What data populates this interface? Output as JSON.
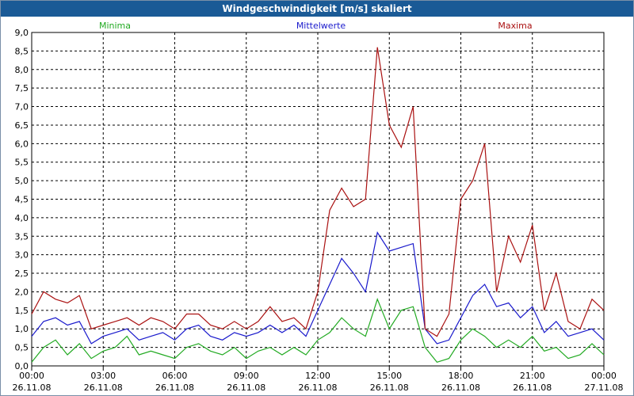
{
  "window": {
    "title": "Windgeschwindigkeit [m/s] skaliert"
  },
  "chart_data": {
    "type": "line",
    "title": "Windgeschwindigkeit [m/s] skaliert",
    "xlabel": "",
    "ylabel": "",
    "ylim": [
      0,
      9
    ],
    "y_ticks": [
      "0,0",
      "0,5",
      "1,0",
      "1,5",
      "2,0",
      "2,5",
      "3,0",
      "3,5",
      "4,0",
      "4,5",
      "5,0",
      "5,5",
      "6,0",
      "6,5",
      "7,0",
      "7,5",
      "8,0",
      "8,5",
      "9,0"
    ],
    "x_ticks": [
      {
        "time": "00:00",
        "date": "26.11.08"
      },
      {
        "time": "03:00",
        "date": "26.11.08"
      },
      {
        "time": "06:00",
        "date": "26.11.08"
      },
      {
        "time": "09:00",
        "date": "26.11.08"
      },
      {
        "time": "12:00",
        "date": "26.11.08"
      },
      {
        "time": "15:00",
        "date": "26.11.08"
      },
      {
        "time": "18:00",
        "date": "26.11.08"
      },
      {
        "time": "21:00",
        "date": "26.11.08"
      },
      {
        "time": "00:00",
        "date": "27.11.08"
      }
    ],
    "x_range_hours": [
      0,
      24
    ],
    "grid": true,
    "legend": [
      "Minima",
      "Mittelwerte",
      "Maxima"
    ],
    "x_hours": [
      0,
      0.5,
      1,
      1.5,
      2,
      2.5,
      3,
      3.5,
      4,
      4.5,
      5,
      5.5,
      6,
      6.5,
      7,
      7.5,
      8,
      8.5,
      9,
      9.5,
      10,
      10.5,
      11,
      11.5,
      12,
      12.5,
      13,
      13.5,
      14,
      14.5,
      15,
      15.5,
      16,
      16.5,
      17,
      17.5,
      18,
      18.5,
      19,
      19.5,
      20,
      20.5,
      21,
      21.5,
      22,
      22.5,
      23,
      23.5,
      24
    ],
    "series": [
      {
        "name": "Minima",
        "color": "#22aa22",
        "values": [
          0.1,
          0.5,
          0.7,
          0.3,
          0.6,
          0.2,
          0.4,
          0.5,
          0.8,
          0.3,
          0.4,
          0.3,
          0.2,
          0.5,
          0.6,
          0.4,
          0.3,
          0.5,
          0.2,
          0.4,
          0.5,
          0.3,
          0.5,
          0.3,
          0.7,
          0.9,
          1.3,
          1.0,
          0.8,
          1.8,
          1.0,
          1.5,
          1.6,
          0.5,
          0.1,
          0.2,
          0.7,
          1.0,
          0.8,
          0.5,
          0.7,
          0.5,
          0.8,
          0.4,
          0.5,
          0.2,
          0.3,
          0.6,
          0.3
        ]
      },
      {
        "name": "Mittelwerte",
        "color": "#1a1acc",
        "values": [
          0.8,
          1.2,
          1.3,
          1.1,
          1.2,
          0.6,
          0.8,
          0.9,
          1.0,
          0.7,
          0.8,
          0.9,
          0.7,
          1.0,
          1.1,
          0.8,
          0.7,
          0.9,
          0.8,
          0.9,
          1.1,
          0.9,
          1.1,
          0.8,
          1.5,
          2.2,
          2.9,
          2.5,
          2.0,
          3.6,
          3.1,
          3.2,
          3.3,
          1.0,
          0.6,
          0.7,
          1.3,
          1.9,
          2.2,
          1.6,
          1.7,
          1.3,
          1.6,
          0.9,
          1.2,
          0.8,
          0.9,
          1.0,
          0.7
        ]
      },
      {
        "name": "Maxima",
        "color": "#aa1111",
        "values": [
          1.4,
          2.0,
          1.8,
          1.7,
          1.9,
          1.0,
          1.1,
          1.2,
          1.3,
          1.1,
          1.3,
          1.2,
          1.0,
          1.4,
          1.4,
          1.1,
          1.0,
          1.2,
          1.0,
          1.2,
          1.6,
          1.2,
          1.3,
          1.0,
          2.0,
          4.2,
          4.8,
          4.3,
          4.5,
          8.6,
          6.5,
          5.9,
          7.0,
          1.0,
          0.8,
          1.4,
          4.5,
          5.0,
          6.0,
          2.0,
          3.5,
          2.8,
          3.8,
          1.5,
          2.5,
          1.2,
          1.0,
          1.8,
          1.5
        ]
      }
    ]
  }
}
